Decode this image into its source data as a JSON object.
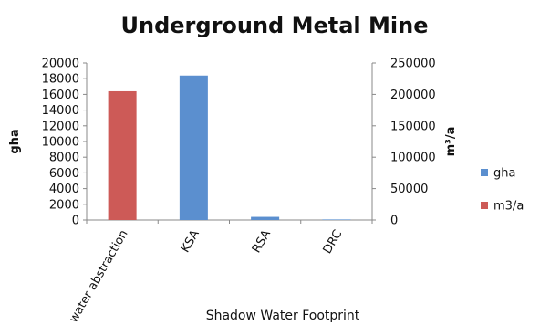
{
  "chart_data": {
    "type": "bar",
    "title": "Underground Metal Mine",
    "xlabel": "Shadow Water Footprint",
    "ylabel": "gha",
    "y2label": "m³/a",
    "categories": [
      "water abstraction",
      "KSA",
      "RSA",
      "DRC"
    ],
    "ylim": [
      0,
      20000
    ],
    "y2lim": [
      0,
      250000
    ],
    "yticks": [
      "0",
      "2000",
      "4000",
      "6000",
      "8000",
      "10000",
      "12000",
      "14000",
      "16000",
      "18000",
      "20000"
    ],
    "y2ticks": [
      "0",
      "50000",
      "100000",
      "150000",
      "200000",
      "250000"
    ],
    "series": [
      {
        "name": "gha",
        "axis": "left",
        "color": "#5b8fcf",
        "values": [
          null,
          18400,
          400,
          50
        ]
      },
      {
        "name": "m3/a",
        "axis": "right",
        "color": "#cd5a57",
        "values": [
          205000,
          null,
          null,
          null
        ]
      }
    ],
    "grid": false,
    "legend": "right"
  }
}
